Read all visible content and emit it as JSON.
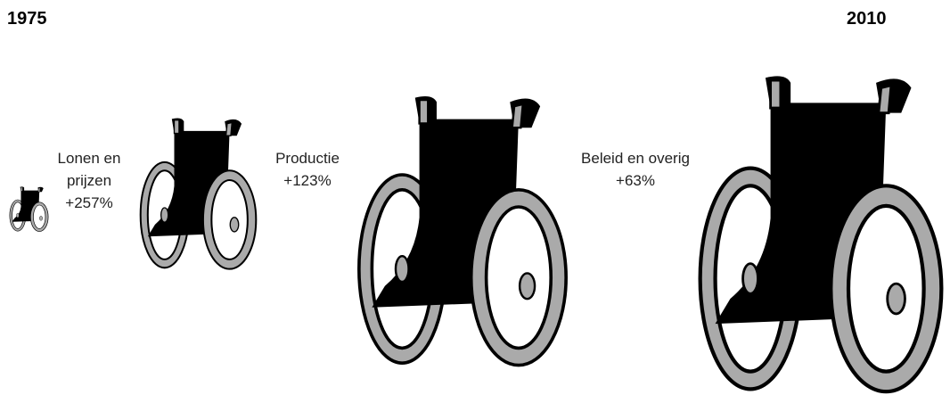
{
  "header": {
    "start_year": "1975",
    "end_year": "2010"
  },
  "steps": [
    {
      "label": [
        "Lonen en",
        "prijzen"
      ],
      "change": "+257%"
    },
    {
      "label": [
        "Productie"
      ],
      "change": "+123%"
    },
    {
      "label": [
        "Beleid en overig"
      ],
      "change": "+63%"
    }
  ]
}
